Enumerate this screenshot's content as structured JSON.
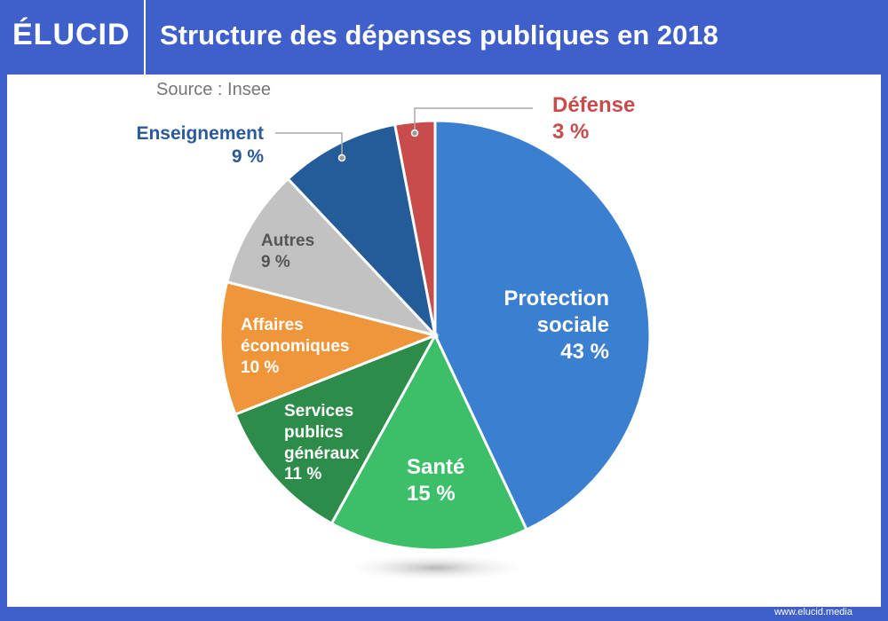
{
  "brand": "ÉLUCID",
  "footer": "www.elucid.media",
  "chart_data": {
    "type": "pie",
    "title": "Structure des dépenses publiques en 2018",
    "subtitle": "Source : Insee",
    "categories": [
      "Protection sociale",
      "Santé",
      "Services publics généraux",
      "Affaires économiques",
      "Autres",
      "Enseignement",
      "Défense"
    ],
    "values": [
      43,
      15,
      11,
      10,
      9,
      9,
      3
    ],
    "value_labels": [
      "43 %",
      "15 %",
      "11 %",
      "10 %",
      "9 %",
      "9 %",
      "3 %"
    ],
    "colors": [
      "#3a7fd0",
      "#3cbf68",
      "#2d8c4a",
      "#f0963a",
      "#c2c2c2",
      "#245c9a",
      "#c84c4c"
    ]
  }
}
